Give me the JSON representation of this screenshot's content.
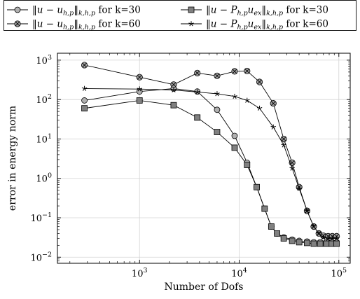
{
  "chart_data": {
    "type": "line",
    "xlabel": "Number of Dofs",
    "ylabel": "error in energy norm",
    "xscale": "log",
    "yscale": "log",
    "xlim": [
      150,
      130000
    ],
    "ylim": [
      0.007,
      1500
    ],
    "grid": true,
    "legend_position": "top",
    "xticks": [
      {
        "value": 1000,
        "base": "10",
        "exp": "3"
      },
      {
        "value": 10000,
        "base": "10",
        "exp": "4"
      },
      {
        "value": 100000,
        "base": "10",
        "exp": "5"
      }
    ],
    "yticks": [
      {
        "value": 0.01,
        "base": "10",
        "exp": "−2"
      },
      {
        "value": 0.1,
        "base": "10",
        "exp": "−1"
      },
      {
        "value": 1,
        "base": "10",
        "exp": "0"
      },
      {
        "value": 10,
        "base": "10",
        "exp": "1"
      },
      {
        "value": 100,
        "base": "10",
        "exp": "2"
      },
      {
        "value": 1000,
        "base": "10",
        "exp": "3"
      }
    ],
    "series": [
      {
        "legend": {
          "norm": "‖u − u",
          "sub": "h,p",
          "tail": "‖",
          "norm_sub": "k,h,p",
          "suffix": " for k=30"
        },
        "marker": "circle",
        "fill": "#b0b0b0",
        "x": [
          280,
          1000,
          2200,
          3800,
          6000,
          9000,
          12000,
          15000,
          18000,
          21000,
          24000,
          28000,
          34000,
          40000,
          48000,
          56000,
          65000,
          75000,
          85000,
          95000
        ],
        "y": [
          95,
          160,
          190,
          160,
          55,
          12,
          2.5,
          0.6,
          0.17,
          0.06,
          0.04,
          0.032,
          0.028,
          0.026,
          0.025,
          0.024,
          0.024,
          0.024,
          0.024,
          0.024
        ]
      },
      {
        "legend": {
          "norm": "‖u − P",
          "sub": "h,p",
          "tail": "u",
          "tail_sub": "ex",
          "tail2": "‖",
          "norm_sub": "k,h,p",
          "suffix": " for k=30"
        },
        "marker": "square",
        "fill": "#808080",
        "x": [
          280,
          1000,
          2200,
          3800,
          6000,
          9000,
          12000,
          15000,
          18000,
          21000,
          24000,
          28000,
          34000,
          40000,
          48000,
          56000,
          65000,
          75000,
          85000,
          95000
        ],
        "y": [
          60,
          95,
          72,
          35,
          15,
          6,
          2.2,
          0.6,
          0.17,
          0.06,
          0.04,
          0.03,
          0.026,
          0.024,
          0.023,
          0.022,
          0.022,
          0.022,
          0.022,
          0.022
        ]
      },
      {
        "legend": {
          "norm": "‖u − u",
          "sub": "h,p",
          "tail": "‖",
          "norm_sub": "k,h,p",
          "suffix": " for k=60"
        },
        "marker": "otimes",
        "fill": "#a0a0a0",
        "x": [
          280,
          1000,
          2200,
          3800,
          6000,
          9000,
          12000,
          16000,
          22000,
          28000,
          34000,
          40000,
          48000,
          56000,
          63000,
          70000,
          78000,
          86000,
          95000
        ],
        "y": [
          750,
          370,
          240,
          470,
          400,
          520,
          530,
          280,
          80,
          10,
          2.5,
          0.6,
          0.15,
          0.06,
          0.04,
          0.035,
          0.034,
          0.034,
          0.034
        ]
      },
      {
        "legend": {
          "norm": "‖u − P",
          "sub": "h,p",
          "tail": "u",
          "tail_sub": "ex",
          "tail2": "‖",
          "norm_sub": "k,h,p",
          "suffix": " for k=60"
        },
        "marker": "star",
        "fill": "#000000",
        "x": [
          280,
          1000,
          2200,
          3800,
          6000,
          9000,
          12000,
          16000,
          22000,
          28000,
          34000,
          40000,
          48000,
          56000,
          63000,
          70000,
          78000,
          86000,
          95000
        ],
        "y": [
          190,
          185,
          175,
          155,
          140,
          120,
          95,
          60,
          20,
          7,
          1.8,
          0.55,
          0.15,
          0.06,
          0.04,
          0.032,
          0.03,
          0.03,
          0.03
        ]
      }
    ]
  }
}
